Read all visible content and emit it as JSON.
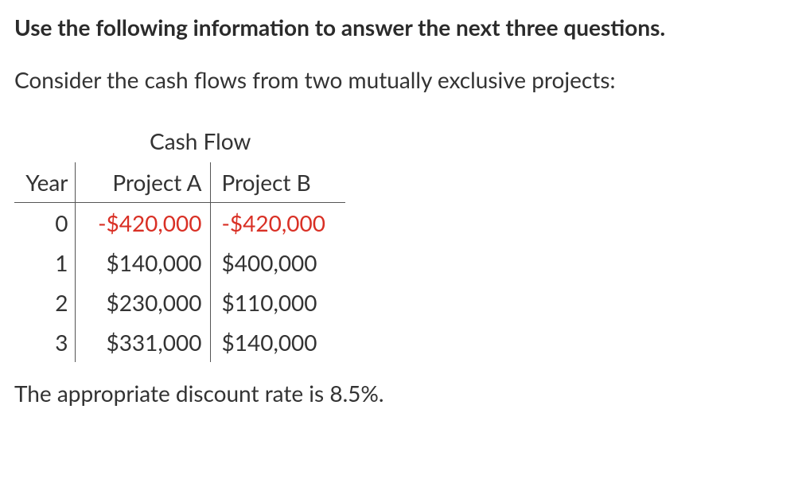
{
  "heading": "Use the following information to answer the next three questions.",
  "intro": "Consider the cash flows from two mutually exclusive projects:",
  "table": {
    "super_header": "Cash Flow",
    "columns": [
      "Year",
      "Project A",
      "Project B"
    ],
    "rows": [
      {
        "year": "0",
        "a": "-$420,000",
        "b": "-$420,000",
        "neg": true
      },
      {
        "year": "1",
        "a": "$140,000",
        "b": "$400,000",
        "neg": false
      },
      {
        "year": "2",
        "a": "$230,000",
        "b": "$110,000",
        "neg": false
      },
      {
        "year": "3",
        "a": "$331,000",
        "b": "$140,000",
        "neg": false
      }
    ],
    "colors": {
      "text": "#333333",
      "negative": "#d93025",
      "border": "#555555",
      "background": "#ffffff"
    },
    "font_size_pt": 21
  },
  "footer": "The appropriate discount rate is 8.5%."
}
